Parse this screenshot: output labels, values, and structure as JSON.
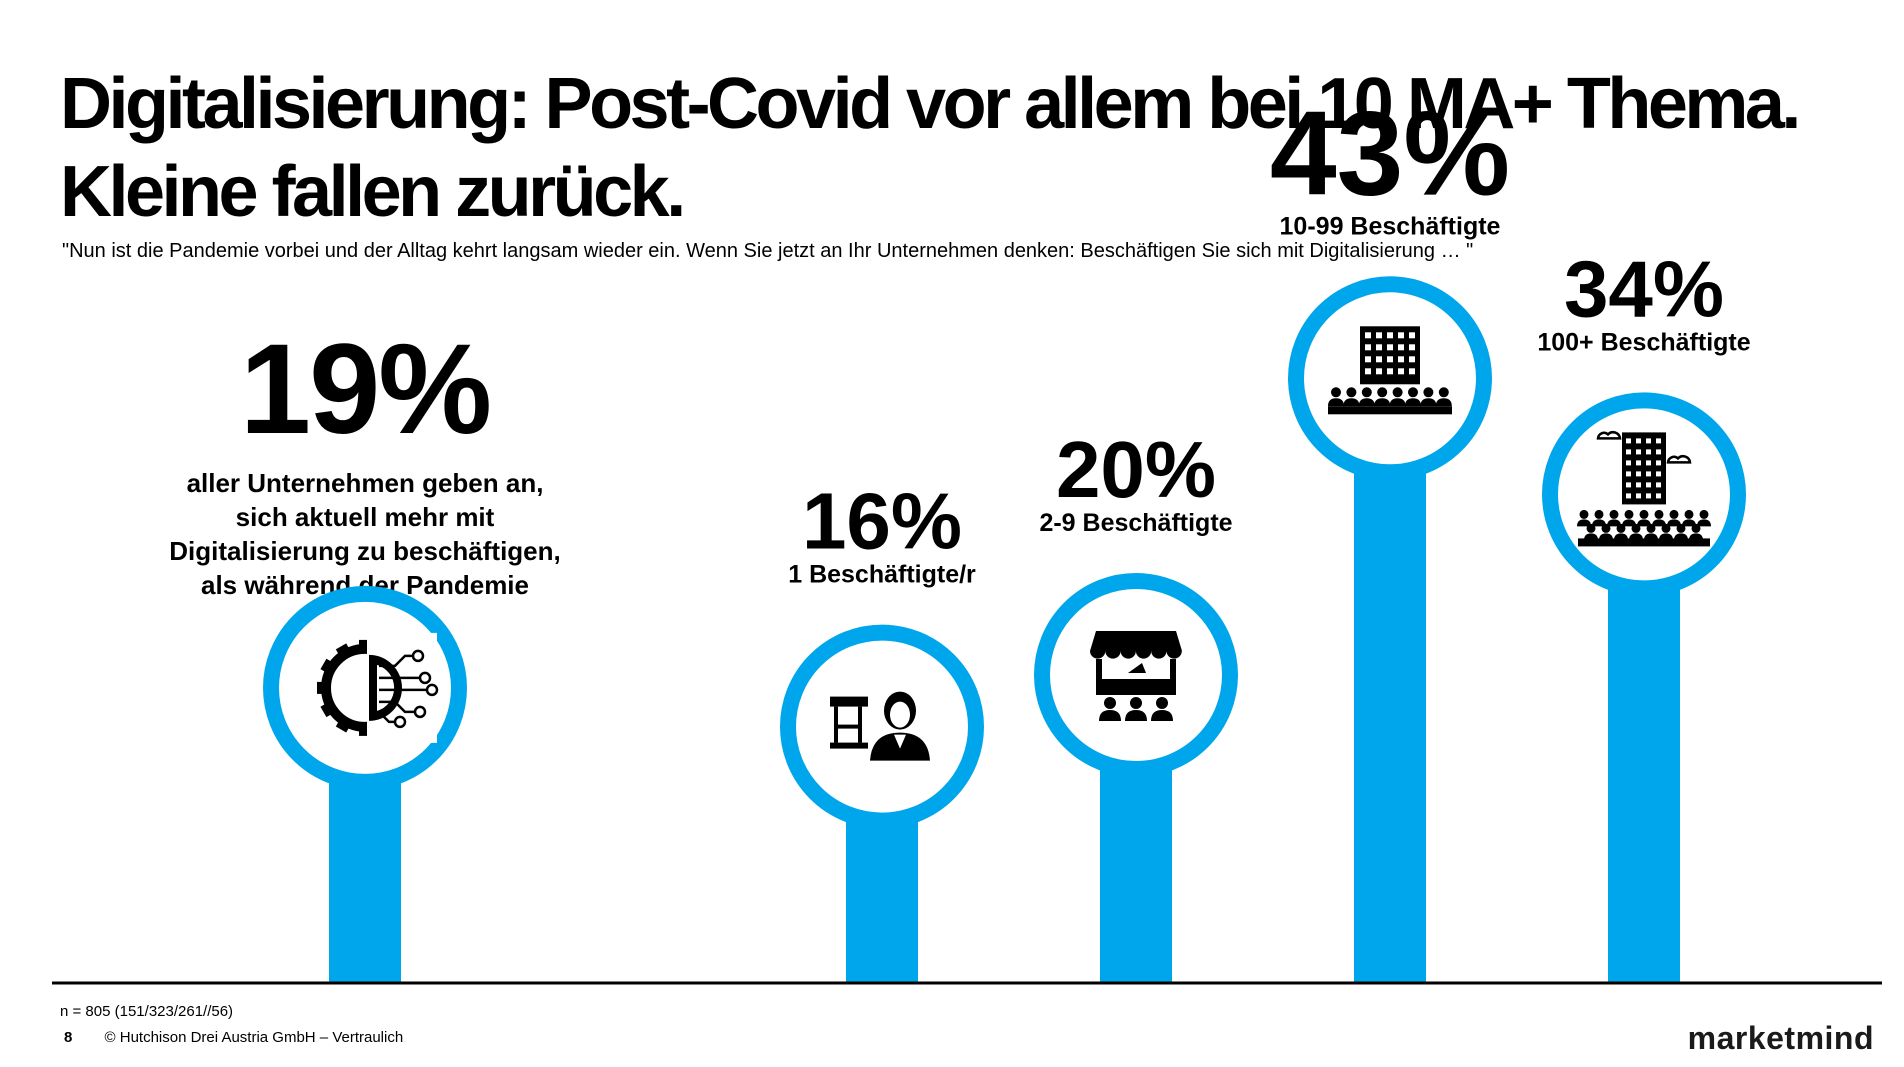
{
  "title_line1": "Digitalisierung: Post-Covid vor allem bei 10 MA+ Thema.",
  "title_line2": "Kleine fallen zurück.",
  "subtitle": "\"Nun ist die Pandemie vorbei und der Alltag kehrt langsam wieder ein. Wenn Sie jetzt an Ihr Unternehmen denken: Beschäftigen Sie sich mit Digitalisierung … \"",
  "overall": {
    "value_label": "19%",
    "text_lines": [
      "aller Unternehmen geben an,",
      "sich aktuell mehr mit",
      "Digitalisierung zu beschäftigen,",
      "als während der Pandemie"
    ],
    "icon": "digital-gear-icon"
  },
  "chart_data": {
    "type": "bar",
    "categories": [
      "1 Beschäftigte/r",
      "2-9 Beschäftigte",
      "10-99 Beschäftigte",
      "100+ Beschäftigte"
    ],
    "values": [
      16,
      20,
      43,
      34
    ],
    "value_labels": [
      "16%",
      "20%",
      "43%",
      "34%"
    ],
    "icons": [
      "single-shop-owner-icon",
      "market-stall-icon",
      "building-crowd-icon",
      "skyscraper-crowd-icon"
    ],
    "overall_value": 19,
    "ylim": [
      0,
      50
    ]
  },
  "colors": {
    "accent": "#00a6eb",
    "text": "#000000",
    "axis": "#000000"
  },
  "footnote": "n = 805 (151/323/261//56)",
  "footer": {
    "page": "8",
    "copyright": "© Hutchison Drei Austria GmbH – Vertraulich"
  },
  "brand": "marketmind"
}
